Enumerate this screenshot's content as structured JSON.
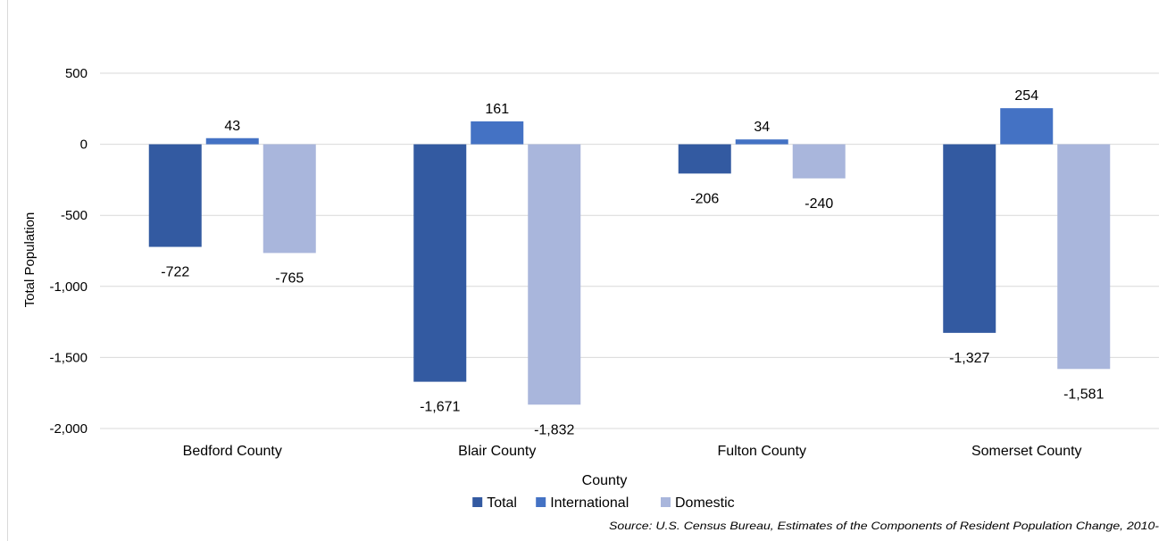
{
  "chart_data": {
    "type": "bar",
    "title": "",
    "xlabel": "County",
    "ylabel": "Total Population",
    "categories": [
      "Bedford County",
      "Blair County",
      "Fulton County",
      "Somerset County"
    ],
    "series": [
      {
        "name": "Total",
        "color": "#335aa1",
        "values": [
          -722,
          -1671,
          -206,
          -1327
        ]
      },
      {
        "name": "International",
        "color": "#4472c4",
        "values": [
          43,
          161,
          34,
          254
        ]
      },
      {
        "name": "Domestic",
        "color": "#a9b6dc",
        "values": [
          -765,
          -1832,
          -240,
          -1581
        ]
      }
    ],
    "data_labels": [
      [
        "-722",
        "-1,671",
        "-206",
        "-1,327"
      ],
      [
        "43",
        "161",
        "34",
        "254"
      ],
      [
        "-765",
        "-1,832",
        "-240",
        "-1,581"
      ]
    ],
    "ylim": [
      -2000,
      500
    ],
    "yticks": [
      500,
      0,
      -500,
      -1000,
      -1500,
      -2000
    ],
    "ytick_labels": [
      "500",
      "0",
      "-500",
      "-1,000",
      "-1,500",
      "-2,000"
    ],
    "grid": true,
    "legend_position": "bottom",
    "source": "Source: U.S. Census Bureau, Estimates of the Components of Resident Population Change, 2010-"
  },
  "colors": {
    "grid": "#d9d9d9",
    "text": "#000000"
  }
}
